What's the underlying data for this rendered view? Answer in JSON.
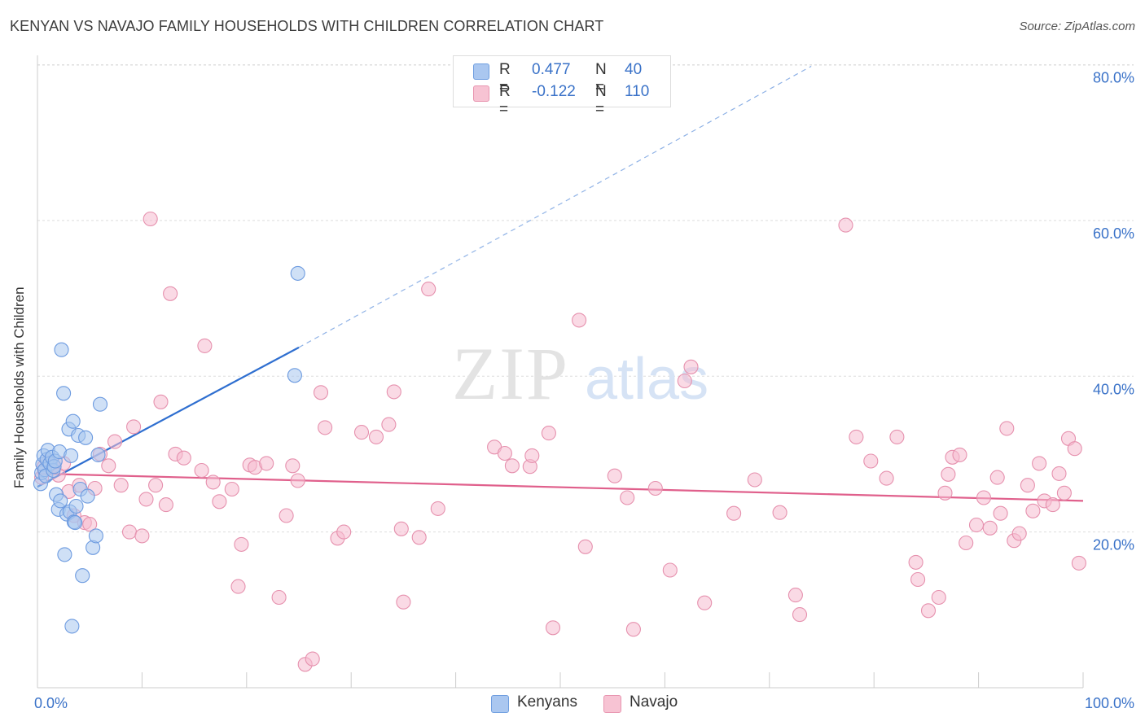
{
  "title": "KENYAN VS NAVAJO FAMILY HOUSEHOLDS WITH CHILDREN CORRELATION CHART",
  "source": "Source: ZipAtlas.com",
  "watermark": {
    "zip": "ZIP",
    "atlas": "atlas"
  },
  "legend": {
    "kenyans": {
      "r_label": "R =",
      "r_value": "0.477",
      "n_label": "N =",
      "n_value": "40",
      "color": "#aac7f0",
      "border": "#6f9ee0"
    },
    "navajo": {
      "r_label": "R =",
      "r_value": "-0.122",
      "n_label": "N =",
      "n_value": "110",
      "color": "#f7c3d3",
      "border": "#e895b0"
    }
  },
  "bottom_legend": {
    "kenyans": "Kenyans",
    "navajo": "Navajo"
  },
  "colors": {
    "kenyan_fill": "#a8c6ee",
    "kenyan_stroke": "#6d9be0",
    "kenyan_line": "#2f6fd0",
    "navajo_fill": "#f6bcd0",
    "navajo_stroke": "#e691ae",
    "navajo_line": "#e0608c",
    "grid": "#dddddd",
    "axis_text": "#3a72c8"
  },
  "chart_data": {
    "type": "scatter",
    "title": "KENYAN VS NAVAJO FAMILY HOUSEHOLDS WITH CHILDREN CORRELATION CHART",
    "xlabel": "",
    "ylabel": "Family Households with Children",
    "xlim": [
      0,
      100
    ],
    "ylim": [
      0,
      83
    ],
    "x_tick_labels": [
      "0.0%",
      "100.0%"
    ],
    "y_ticks": [
      20,
      40,
      60,
      80
    ],
    "y_tick_labels": [
      "20.0%",
      "40.0%",
      "60.0%",
      "80.0%"
    ],
    "grid": true,
    "series": [
      {
        "name": "Kenyans",
        "r": 0.477,
        "n": 40,
        "trend": {
          "x0": 0,
          "y0": 25.8,
          "x1": 25,
          "y1": 43.7,
          "dashed_to_x": 74,
          "dashed_to_y": 79.8
        },
        "points": [
          [
            0.3,
            26.2
          ],
          [
            0.4,
            27.6
          ],
          [
            0.5,
            28.7
          ],
          [
            0.6,
            29.8
          ],
          [
            0.7,
            28.0
          ],
          [
            0.8,
            27.2
          ],
          [
            0.9,
            29.3
          ],
          [
            1.0,
            30.5
          ],
          [
            1.2,
            28.8
          ],
          [
            1.4,
            29.6
          ],
          [
            1.5,
            27.9
          ],
          [
            1.6,
            28.4
          ],
          [
            1.7,
            29.1
          ],
          [
            1.8,
            24.8
          ],
          [
            2.0,
            22.9
          ],
          [
            2.1,
            30.3
          ],
          [
            2.2,
            24.0
          ],
          [
            2.3,
            43.4
          ],
          [
            2.5,
            37.8
          ],
          [
            2.6,
            17.1
          ],
          [
            2.8,
            22.3
          ],
          [
            3.0,
            33.2
          ],
          [
            3.1,
            22.6
          ],
          [
            3.2,
            29.8
          ],
          [
            3.3,
            7.9
          ],
          [
            3.4,
            34.2
          ],
          [
            3.5,
            21.3
          ],
          [
            3.6,
            21.2
          ],
          [
            3.7,
            23.3
          ],
          [
            3.9,
            32.4
          ],
          [
            4.1,
            25.5
          ],
          [
            4.3,
            14.4
          ],
          [
            4.6,
            32.1
          ],
          [
            4.8,
            24.6
          ],
          [
            5.3,
            18.0
          ],
          [
            5.6,
            19.5
          ],
          [
            5.8,
            29.9
          ],
          [
            6.0,
            36.4
          ],
          [
            24.6,
            40.1
          ],
          [
            24.9,
            53.2
          ]
        ]
      },
      {
        "name": "Navajo",
        "r": -0.122,
        "n": 110,
        "trend": {
          "x0": 0,
          "y0": 27.5,
          "x1": 100,
          "y1": 24.0
        },
        "points": [
          [
            0.4,
            27.0
          ],
          [
            0.6,
            28.3
          ],
          [
            1.0,
            29.0
          ],
          [
            1.5,
            28.5
          ],
          [
            2.0,
            27.3
          ],
          [
            2.5,
            28.8
          ],
          [
            3.0,
            25.2
          ],
          [
            3.5,
            22.1
          ],
          [
            4.0,
            26.0
          ],
          [
            4.5,
            21.2
          ],
          [
            5.0,
            21.0
          ],
          [
            5.5,
            25.6
          ],
          [
            6.0,
            30.0
          ],
          [
            6.8,
            28.5
          ],
          [
            7.4,
            31.6
          ],
          [
            8.0,
            26.0
          ],
          [
            8.8,
            20.0
          ],
          [
            9.2,
            33.5
          ],
          [
            10.0,
            19.5
          ],
          [
            10.4,
            24.2
          ],
          [
            10.8,
            60.2
          ],
          [
            11.3,
            26.0
          ],
          [
            11.8,
            36.7
          ],
          [
            12.3,
            23.5
          ],
          [
            12.7,
            50.6
          ],
          [
            13.2,
            30.0
          ],
          [
            14.0,
            29.5
          ],
          [
            15.7,
            27.9
          ],
          [
            16.0,
            43.9
          ],
          [
            16.8,
            26.4
          ],
          [
            17.4,
            23.9
          ],
          [
            18.6,
            25.5
          ],
          [
            19.2,
            13.0
          ],
          [
            19.5,
            18.4
          ],
          [
            20.3,
            28.6
          ],
          [
            20.8,
            28.3
          ],
          [
            21.9,
            28.8
          ],
          [
            23.1,
            11.6
          ],
          [
            23.8,
            22.1
          ],
          [
            24.4,
            28.5
          ],
          [
            24.9,
            26.6
          ],
          [
            25.6,
            3.0
          ],
          [
            26.3,
            3.7
          ],
          [
            27.1,
            37.9
          ],
          [
            27.5,
            33.4
          ],
          [
            28.7,
            19.2
          ],
          [
            29.3,
            20.0
          ],
          [
            31.0,
            32.8
          ],
          [
            32.4,
            32.2
          ],
          [
            33.6,
            33.8
          ],
          [
            34.1,
            38.0
          ],
          [
            34.8,
            20.4
          ],
          [
            35.0,
            11.0
          ],
          [
            36.5,
            19.3
          ],
          [
            37.4,
            51.2
          ],
          [
            38.3,
            23.0
          ],
          [
            43.7,
            30.9
          ],
          [
            44.7,
            30.1
          ],
          [
            45.4,
            28.5
          ],
          [
            47.1,
            28.4
          ],
          [
            47.3,
            29.8
          ],
          [
            48.9,
            32.7
          ],
          [
            49.3,
            7.7
          ],
          [
            51.8,
            47.2
          ],
          [
            52.4,
            18.1
          ],
          [
            55.2,
            27.2
          ],
          [
            56.4,
            24.4
          ],
          [
            57.0,
            7.5
          ],
          [
            59.1,
            25.6
          ],
          [
            60.5,
            15.1
          ],
          [
            61.9,
            39.4
          ],
          [
            62.5,
            41.2
          ],
          [
            63.8,
            10.9
          ],
          [
            66.6,
            22.4
          ],
          [
            68.6,
            26.7
          ],
          [
            71.0,
            22.5
          ],
          [
            72.5,
            11.9
          ],
          [
            72.9,
            9.4
          ],
          [
            77.3,
            59.4
          ],
          [
            78.3,
            32.2
          ],
          [
            79.7,
            29.1
          ],
          [
            81.2,
            26.9
          ],
          [
            82.2,
            32.2
          ],
          [
            84.0,
            16.1
          ],
          [
            84.2,
            13.9
          ],
          [
            85.2,
            9.9
          ],
          [
            86.2,
            11.6
          ],
          [
            86.8,
            25.0
          ],
          [
            87.1,
            27.4
          ],
          [
            87.5,
            29.6
          ],
          [
            88.2,
            29.9
          ],
          [
            88.8,
            18.6
          ],
          [
            89.8,
            20.9
          ],
          [
            90.5,
            24.4
          ],
          [
            91.1,
            20.5
          ],
          [
            91.8,
            27.0
          ],
          [
            92.1,
            22.4
          ],
          [
            92.7,
            33.3
          ],
          [
            93.4,
            18.9
          ],
          [
            93.9,
            19.8
          ],
          [
            94.7,
            26.0
          ],
          [
            95.2,
            22.7
          ],
          [
            95.8,
            28.8
          ],
          [
            96.3,
            24.0
          ],
          [
            97.1,
            23.5
          ],
          [
            97.7,
            27.5
          ],
          [
            98.2,
            25.0
          ],
          [
            98.6,
            32.0
          ],
          [
            99.2,
            30.7
          ],
          [
            99.6,
            16.0
          ]
        ]
      }
    ]
  }
}
